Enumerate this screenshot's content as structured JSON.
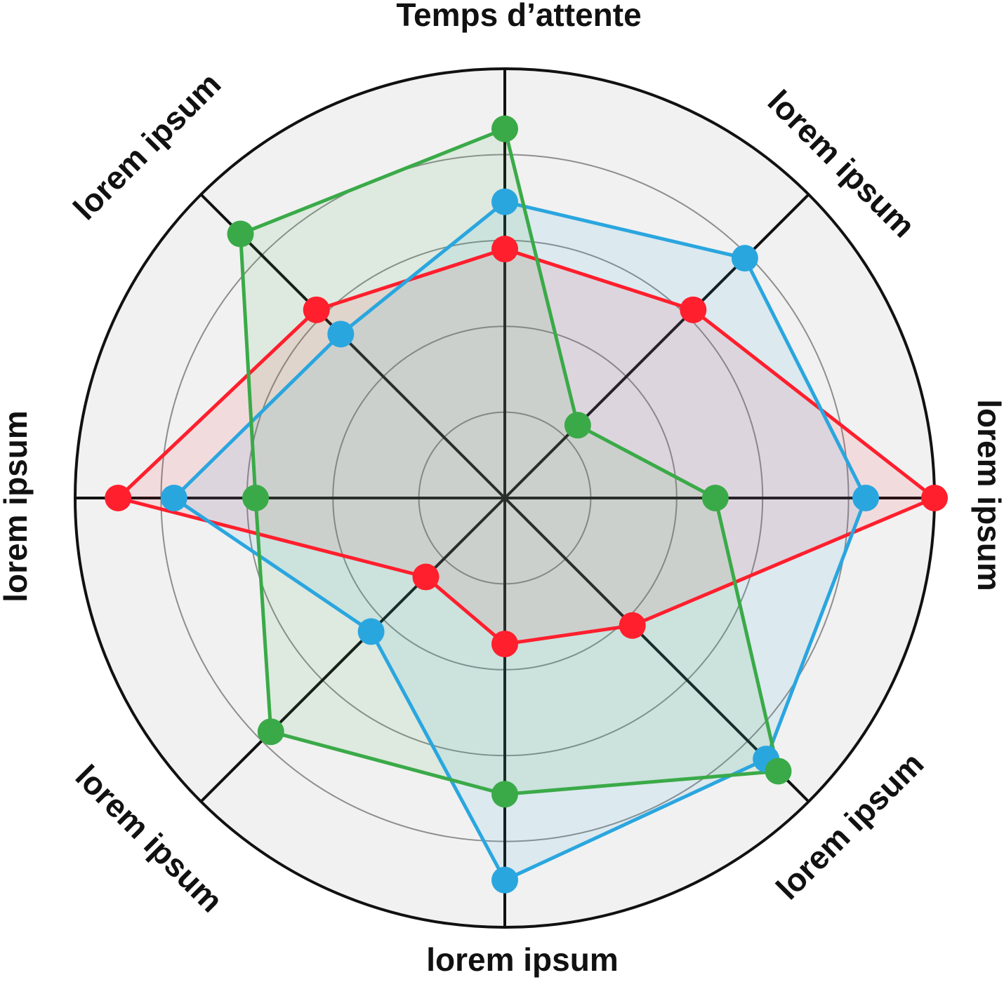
{
  "chart_data": {
    "type": "radar",
    "title": "",
    "axes": [
      "Temps d’attente",
      "lorem ipsum",
      "lorem ipsum",
      "lorem ipsum",
      "lorem ipsum",
      "lorem ipsum",
      "lorem ipsum",
      "lorem ipsum"
    ],
    "range": [
      0,
      1
    ],
    "ring_levels": [
      0.2,
      0.4,
      0.6,
      0.8
    ],
    "grid": true,
    "legend": "none",
    "series": [
      {
        "color": "#ff1f2d",
        "fill": "#ff1f2d",
        "values": [
          0.58,
          0.62,
          1.0,
          0.42,
          0.34,
          0.26,
          0.9,
          0.62
        ]
      },
      {
        "color": "#2aa6df",
        "fill": "#2aa6df",
        "values": [
          0.69,
          0.79,
          0.84,
          0.86,
          0.89,
          0.44,
          0.77,
          0.54
        ]
      },
      {
        "color": "#3aaa48",
        "fill": "#3aaa48",
        "values": [
          0.86,
          0.24,
          0.49,
          0.9,
          0.69,
          0.77,
          0.58,
          0.87
        ]
      }
    ]
  }
}
